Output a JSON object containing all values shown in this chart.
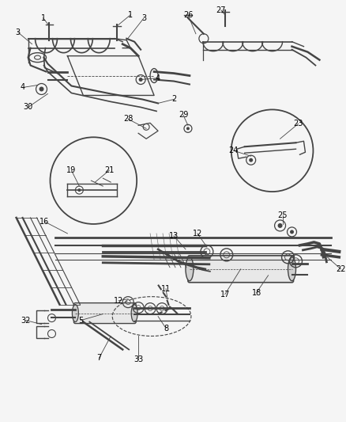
{
  "bg_color": "#f5f5f5",
  "line_color": "#444444",
  "text_color": "#000000",
  "label_fontsize": 7.0,
  "fig_width": 4.39,
  "fig_height": 5.33,
  "dpi": 100,
  "gray_fill": "#d8d8d8",
  "dark_gray": "#888888",
  "light_gray": "#bbbbbb"
}
